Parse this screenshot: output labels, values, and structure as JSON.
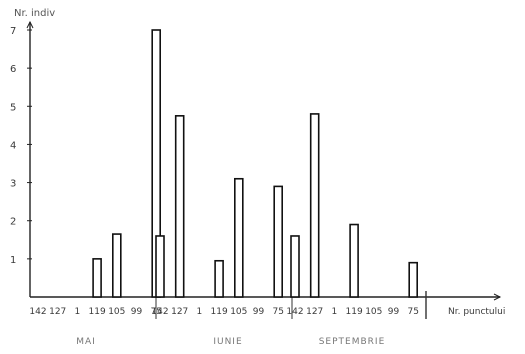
{
  "chart_data": {
    "type": "bar",
    "title": "",
    "ylabel": "Nr. indiv",
    "xlabel": "Nr. punctului",
    "ylim": [
      0,
      7
    ],
    "yticks": [
      1,
      2,
      3,
      4,
      5,
      6,
      7
    ],
    "grid": false,
    "month_labels": [
      "MAI",
      "IUNIE",
      "SEPTEMBRIE"
    ],
    "groups": [
      {
        "name": "MAI",
        "categories": [
          "142",
          "127",
          "1",
          "119",
          "105",
          "99",
          "75"
        ],
        "values": [
          0,
          0,
          0,
          1,
          1.65,
          0,
          7
        ]
      },
      {
        "name": "IUNIE",
        "categories": [
          "142",
          "127",
          "1",
          "119",
          "105",
          "99",
          "75"
        ],
        "values": [
          1.6,
          4.75,
          0,
          0.95,
          3.1,
          0,
          2.9
        ]
      },
      {
        "name": "SEPTEMBRIE",
        "categories": [
          "142",
          "127",
          "1",
          "119",
          "105",
          "99",
          "75"
        ],
        "values": [
          1.6,
          4.8,
          0,
          1.9,
          0,
          0,
          0.9
        ]
      }
    ]
  }
}
